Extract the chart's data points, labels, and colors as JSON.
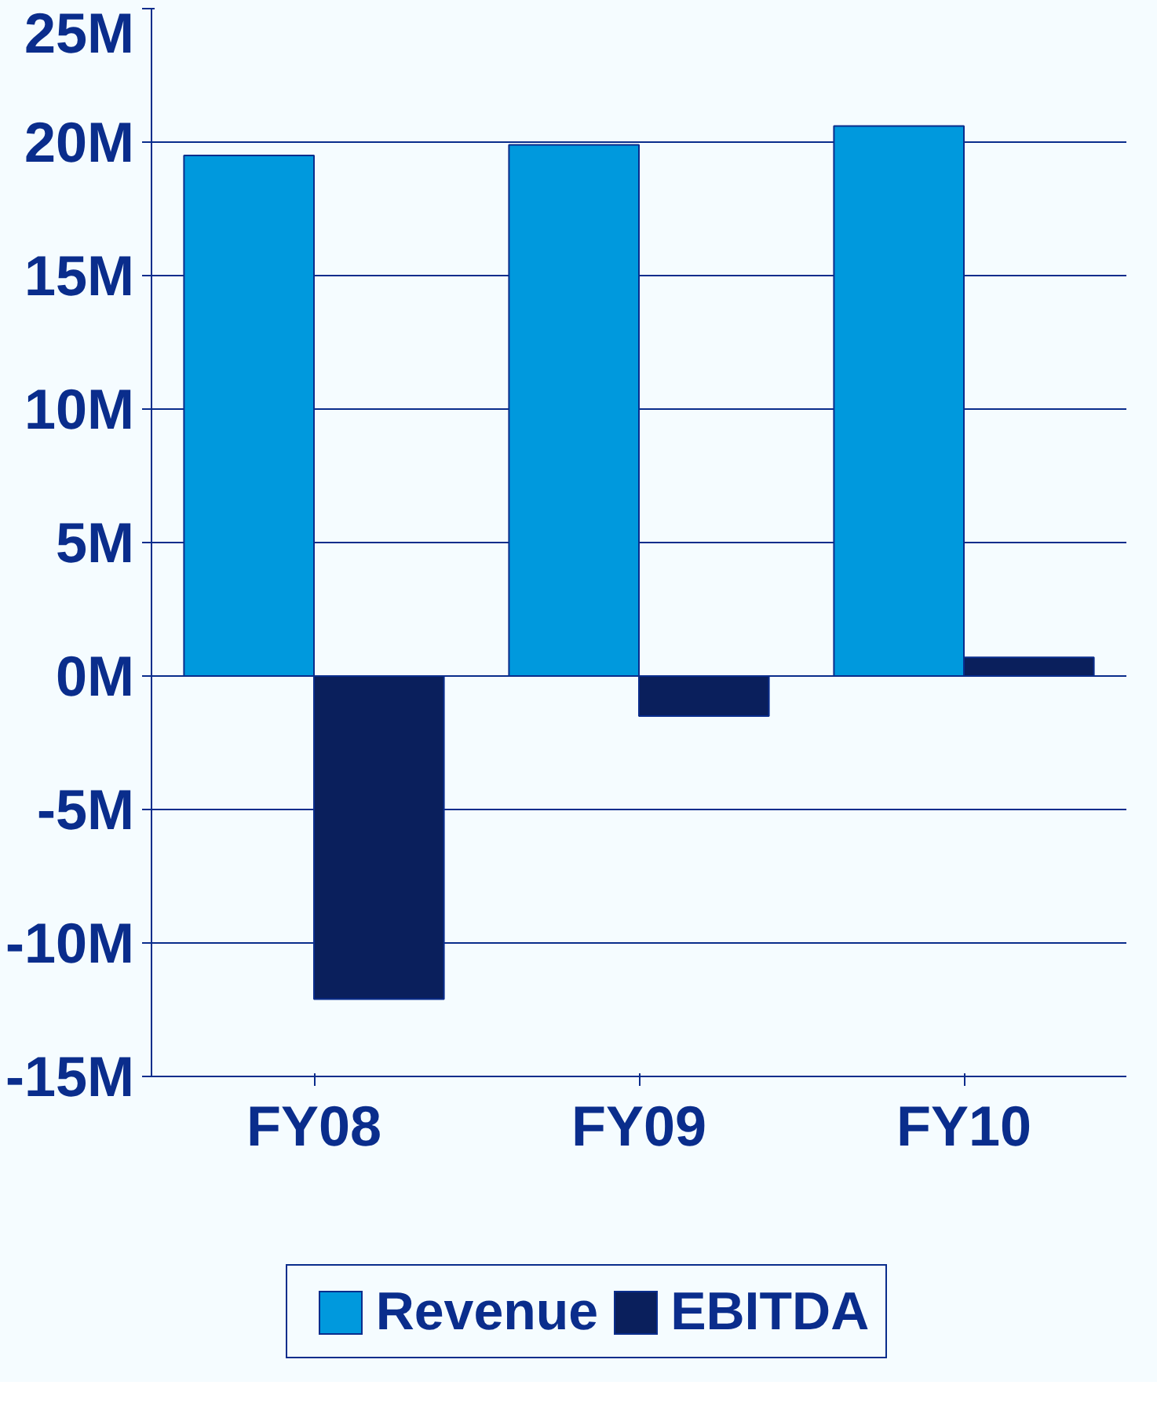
{
  "chart_data": {
    "type": "bar",
    "categories": [
      "FY08",
      "FY09",
      "FY10"
    ],
    "series": [
      {
        "name": "Revenue",
        "color": "#0099dd",
        "values": [
          19.5,
          19.9,
          20.6
        ]
      },
      {
        "name": "EBITDA",
        "color": "#0a1f5c",
        "values": [
          -12.1,
          -1.5,
          0.7
        ]
      }
    ],
    "ylim": [
      -15,
      25
    ],
    "yticks": [
      {
        "value": -15,
        "label": "-15M"
      },
      {
        "value": -10,
        "label": "-10M"
      },
      {
        "value": -5,
        "label": "-5M"
      },
      {
        "value": 0,
        "label": "0M"
      },
      {
        "value": 5,
        "label": "5M"
      },
      {
        "value": 10,
        "label": "10M"
      },
      {
        "value": 15,
        "label": "15M"
      },
      {
        "value": 20,
        "label": "20M"
      },
      {
        "value": 25,
        "label": "25M"
      }
    ],
    "grid": "y",
    "legend": "bottom"
  }
}
